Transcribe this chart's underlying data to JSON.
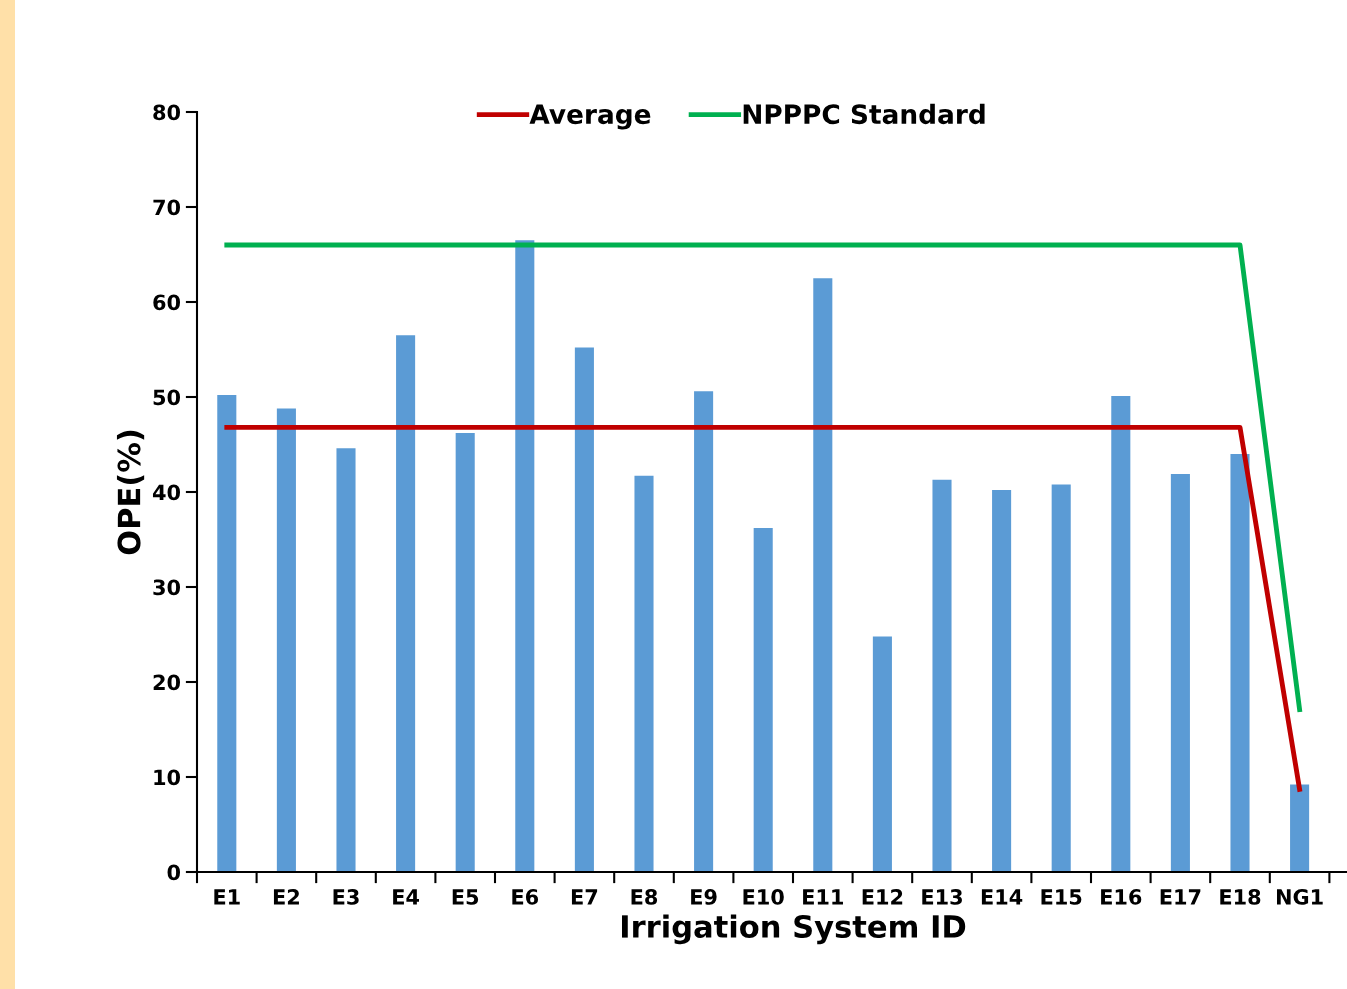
{
  "chart_data": {
    "type": "bar",
    "xlabel": "Irrigation System ID",
    "ylabel": "OPE(%)",
    "categories": [
      "E1",
      "E2",
      "E3",
      "E4",
      "E5",
      "E6",
      "E7",
      "E8",
      "E9",
      "E10",
      "E11",
      "E12",
      "E13",
      "E14",
      "E15",
      "E16",
      "E17",
      "E18",
      "NG1",
      null
    ],
    "series": [
      {
        "color": "#5b9bd5",
        "values": [
          50.2,
          48.8,
          44.6,
          56.5,
          46.2,
          66.5,
          55.2,
          41.7,
          50.6,
          36.2,
          62.5,
          24.8,
          41.3,
          40.2,
          40.8,
          50.1,
          41.9,
          44.0,
          9.2,
          null
        ]
      },
      {
        "type": "line",
        "name": "Average",
        "color": "#c00000",
        "values": [
          46.8,
          46.8,
          46.8,
          46.8,
          46.8,
          46.8,
          46.8,
          46.8,
          46.8,
          46.8,
          46.8,
          46.8,
          46.8,
          46.8,
          46.8,
          46.8,
          46.8,
          46.8,
          8.7,
          null
        ]
      },
      {
        "type": "line",
        "name": "NPPPC Standard",
        "color": "#00b050",
        "values": [
          66.0,
          66.0,
          66.0,
          66.0,
          66.0,
          66.0,
          66.0,
          66.0,
          66.0,
          66.0,
          66.0,
          66.0,
          66.0,
          66.0,
          66.0,
          66.0,
          66.0,
          66.0,
          17.1,
          null
        ]
      }
    ],
    "ylim": [
      0,
      80
    ],
    "yticks": [
      0,
      10,
      20,
      30,
      40,
      50,
      60,
      70,
      80
    ],
    "grid": false,
    "legend": "top",
    "marker": "none",
    "line_style": "solid"
  }
}
